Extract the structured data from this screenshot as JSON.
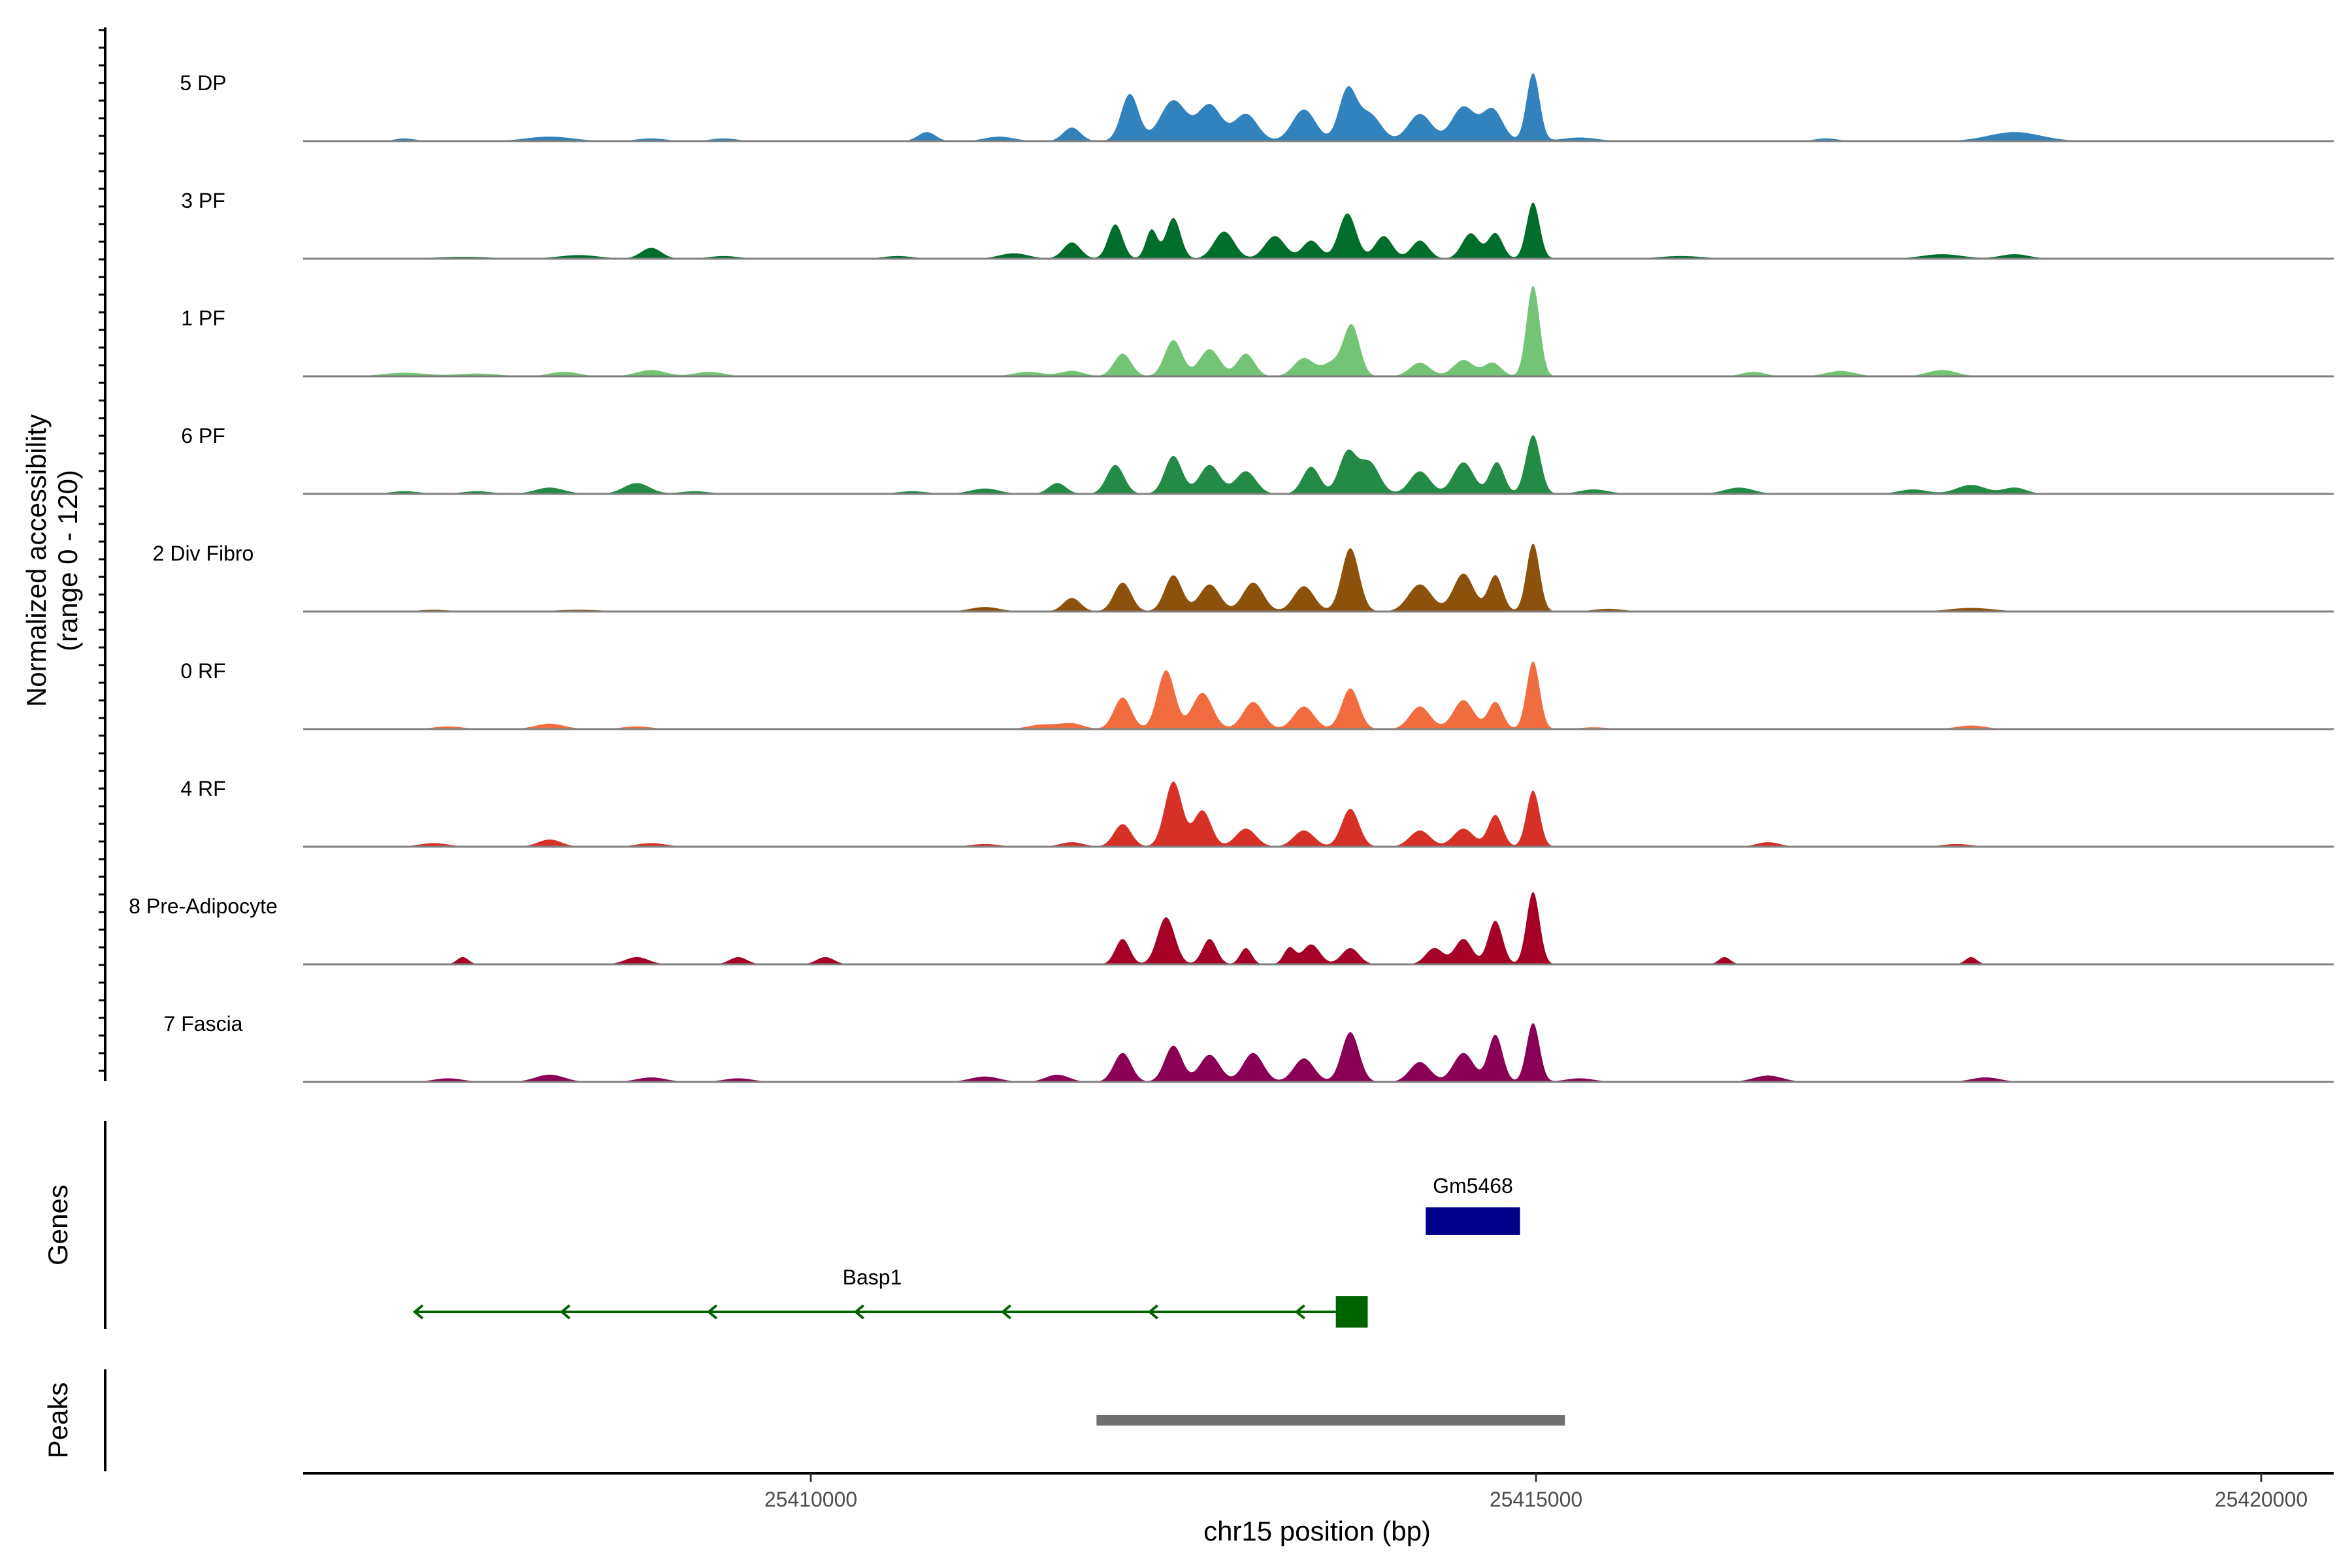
{
  "chart_data": {
    "type": "area",
    "title": "",
    "xlabel": "chr15 position (bp)",
    "ylabel": "Normalized accessibility",
    "ylabel_range": "(range 0 - 120)",
    "xlim": [
      25406500,
      25420500
    ],
    "ylim": [
      0,
      120
    ],
    "x_ticks": [
      25410000,
      25415000,
      25420000
    ],
    "x_tick_labels": [
      "25410000",
      "25415000",
      "25420000"
    ],
    "baseline_color": "#808080",
    "tracks": [
      {
        "name": "5 DP",
        "color": "#3182BD",
        "peaks": [
          [
            25407200,
            3,
            70
          ],
          [
            25408200,
            5,
            160
          ],
          [
            25408900,
            3,
            100
          ],
          [
            25409400,
            3,
            90
          ],
          [
            25410800,
            10,
            60
          ],
          [
            25411300,
            5,
            100
          ],
          [
            25411800,
            15,
            60
          ],
          [
            25412200,
            52,
            60
          ],
          [
            25412500,
            45,
            90
          ],
          [
            25412750,
            40,
            80
          ],
          [
            25413000,
            30,
            80
          ],
          [
            25413400,
            35,
            80
          ],
          [
            25413700,
            55,
            60
          ],
          [
            25413850,
            30,
            80
          ],
          [
            25414200,
            30,
            80
          ],
          [
            25414500,
            38,
            80
          ],
          [
            25414700,
            35,
            70
          ],
          [
            25414980,
            75,
            45
          ],
          [
            25415300,
            4,
            120
          ],
          [
            25417000,
            3,
            80
          ],
          [
            25418300,
            10,
            180
          ]
        ]
      },
      {
        "name": "3 PF",
        "color": "#006D2C",
        "peaks": [
          [
            25407600,
            2,
            200
          ],
          [
            25408400,
            4,
            140
          ],
          [
            25408900,
            12,
            70
          ],
          [
            25409400,
            3,
            100
          ],
          [
            25410600,
            3,
            100
          ],
          [
            25411400,
            6,
            100
          ],
          [
            25411800,
            18,
            60
          ],
          [
            25412100,
            38,
            50
          ],
          [
            25412350,
            32,
            40
          ],
          [
            25412500,
            45,
            50
          ],
          [
            25412850,
            30,
            70
          ],
          [
            25413200,
            25,
            70
          ],
          [
            25413450,
            20,
            60
          ],
          [
            25413700,
            50,
            60
          ],
          [
            25413950,
            25,
            60
          ],
          [
            25414200,
            20,
            60
          ],
          [
            25414550,
            28,
            60
          ],
          [
            25414720,
            28,
            50
          ],
          [
            25414980,
            62,
            45
          ],
          [
            25416000,
            3,
            150
          ],
          [
            25417800,
            5,
            140
          ],
          [
            25418300,
            5,
            100
          ]
        ]
      },
      {
        "name": "1 PF",
        "color": "#74C476",
        "peaks": [
          [
            25407200,
            4,
            150
          ],
          [
            25407700,
            3,
            150
          ],
          [
            25408300,
            5,
            100
          ],
          [
            25408900,
            7,
            100
          ],
          [
            25409300,
            5,
            100
          ],
          [
            25411500,
            5,
            100
          ],
          [
            25411800,
            6,
            80
          ],
          [
            25412150,
            25,
            60
          ],
          [
            25412500,
            40,
            60
          ],
          [
            25412750,
            30,
            70
          ],
          [
            25413000,
            25,
            60
          ],
          [
            25413400,
            20,
            70
          ],
          [
            25413600,
            15,
            70
          ],
          [
            25413730,
            55,
            55
          ],
          [
            25414200,
            15,
            70
          ],
          [
            25414500,
            18,
            70
          ],
          [
            25414700,
            15,
            60
          ],
          [
            25414980,
            100,
            45
          ],
          [
            25416500,
            5,
            80
          ],
          [
            25417100,
            6,
            100
          ],
          [
            25417800,
            7,
            100
          ]
        ]
      },
      {
        "name": "6 PF",
        "color": "#238B45",
        "peaks": [
          [
            25407200,
            3,
            100
          ],
          [
            25407700,
            3,
            100
          ],
          [
            25408200,
            7,
            100
          ],
          [
            25408800,
            12,
            90
          ],
          [
            25409200,
            3,
            100
          ],
          [
            25410700,
            3,
            100
          ],
          [
            25411200,
            6,
            100
          ],
          [
            25411700,
            12,
            60
          ],
          [
            25412100,
            32,
            60
          ],
          [
            25412500,
            42,
            60
          ],
          [
            25412750,
            32,
            70
          ],
          [
            25413000,
            25,
            70
          ],
          [
            25413450,
            30,
            60
          ],
          [
            25413700,
            45,
            60
          ],
          [
            25413850,
            35,
            70
          ],
          [
            25414200,
            25,
            70
          ],
          [
            25414500,
            35,
            70
          ],
          [
            25414730,
            35,
            50
          ],
          [
            25414980,
            65,
            50
          ],
          [
            25415400,
            5,
            100
          ],
          [
            25416400,
            7,
            100
          ],
          [
            25417600,
            5,
            100
          ],
          [
            25418000,
            10,
            100
          ],
          [
            25418300,
            7,
            80
          ]
        ]
      },
      {
        "name": "2 Div Fibro",
        "color": "#8C510A",
        "peaks": [
          [
            25407400,
            2,
            100
          ],
          [
            25408400,
            2,
            150
          ],
          [
            25411200,
            5,
            100
          ],
          [
            25411800,
            15,
            60
          ],
          [
            25412150,
            32,
            60
          ],
          [
            25412500,
            40,
            60
          ],
          [
            25412750,
            30,
            70
          ],
          [
            25413050,
            32,
            70
          ],
          [
            25413400,
            28,
            70
          ],
          [
            25413720,
            70,
            60
          ],
          [
            25414200,
            30,
            80
          ],
          [
            25414500,
            42,
            70
          ],
          [
            25414720,
            40,
            50
          ],
          [
            25414980,
            75,
            45
          ],
          [
            25415500,
            3,
            100
          ],
          [
            25418000,
            4,
            150
          ]
        ]
      },
      {
        "name": "0 RF",
        "color": "#F16D3F",
        "peaks": [
          [
            25407500,
            3,
            100
          ],
          [
            25408200,
            6,
            100
          ],
          [
            25408800,
            3,
            100
          ],
          [
            25411600,
            5,
            100
          ],
          [
            25411800,
            6,
            80
          ],
          [
            25412150,
            35,
            60
          ],
          [
            25412450,
            65,
            60
          ],
          [
            25412700,
            40,
            70
          ],
          [
            25413050,
            30,
            70
          ],
          [
            25413400,
            25,
            70
          ],
          [
            25413720,
            45,
            60
          ],
          [
            25414200,
            25,
            70
          ],
          [
            25414500,
            32,
            70
          ],
          [
            25414720,
            30,
            50
          ],
          [
            25414980,
            75,
            45
          ],
          [
            25415400,
            2,
            100
          ],
          [
            25418000,
            4,
            100
          ]
        ]
      },
      {
        "name": "4 RF",
        "color": "#D73027",
        "peaks": [
          [
            25407400,
            4,
            100
          ],
          [
            25408200,
            8,
            80
          ],
          [
            25408900,
            4,
            100
          ],
          [
            25411200,
            3,
            100
          ],
          [
            25411800,
            5,
            80
          ],
          [
            25412150,
            25,
            60
          ],
          [
            25412500,
            72,
            60
          ],
          [
            25412700,
            40,
            60
          ],
          [
            25413000,
            20,
            70
          ],
          [
            25413400,
            18,
            70
          ],
          [
            25413720,
            42,
            60
          ],
          [
            25414200,
            18,
            70
          ],
          [
            25414500,
            20,
            70
          ],
          [
            25414720,
            35,
            50
          ],
          [
            25414980,
            62,
            45
          ],
          [
            25416600,
            5,
            80
          ],
          [
            25417900,
            3,
            100
          ]
        ]
      },
      {
        "name": "8 Pre-Adipocyte",
        "color": "#A50026",
        "peaks": [
          [
            25407600,
            8,
            40
          ],
          [
            25408800,
            8,
            80
          ],
          [
            25409500,
            8,
            60
          ],
          [
            25410100,
            8,
            60
          ],
          [
            25412150,
            28,
            50
          ],
          [
            25412450,
            52,
            60
          ],
          [
            25412750,
            28,
            50
          ],
          [
            25413000,
            18,
            40
          ],
          [
            25413300,
            18,
            40
          ],
          [
            25413450,
            22,
            60
          ],
          [
            25413720,
            18,
            60
          ],
          [
            25414300,
            18,
            60
          ],
          [
            25414500,
            28,
            60
          ],
          [
            25414720,
            48,
            50
          ],
          [
            25414980,
            80,
            45
          ],
          [
            25416300,
            8,
            40
          ],
          [
            25418000,
            8,
            40
          ]
        ]
      },
      {
        "name": "7 Fascia",
        "color": "#8B0057",
        "peaks": [
          [
            25407500,
            4,
            100
          ],
          [
            25408200,
            8,
            100
          ],
          [
            25408900,
            5,
            100
          ],
          [
            25409500,
            4,
            100
          ],
          [
            25411200,
            6,
            100
          ],
          [
            25411700,
            8,
            80
          ],
          [
            25412150,
            32,
            60
          ],
          [
            25412500,
            40,
            60
          ],
          [
            25412750,
            30,
            70
          ],
          [
            25413050,
            32,
            70
          ],
          [
            25413400,
            26,
            70
          ],
          [
            25413720,
            55,
            60
          ],
          [
            25414200,
            22,
            70
          ],
          [
            25414500,
            32,
            70
          ],
          [
            25414720,
            52,
            50
          ],
          [
            25414980,
            65,
            45
          ],
          [
            25415300,
            4,
            100
          ],
          [
            25416600,
            7,
            100
          ],
          [
            25418100,
            5,
            100
          ]
        ]
      }
    ],
    "genes_track_label": "Genes",
    "genes": [
      {
        "name": "Gm5468",
        "start": 25414240,
        "end": 25414890,
        "strand": "+",
        "color": "#00008B"
      },
      {
        "name": "Basp1",
        "start": 25407270,
        "end": 25413740,
        "strand": "-",
        "color": "#006400",
        "exon": [
          25413620,
          25413840
        ]
      }
    ],
    "peaks_track_label": "Peaks",
    "peak_regions": [
      {
        "start": 25411970,
        "end": 25415200,
        "color": "#707070"
      }
    ]
  }
}
